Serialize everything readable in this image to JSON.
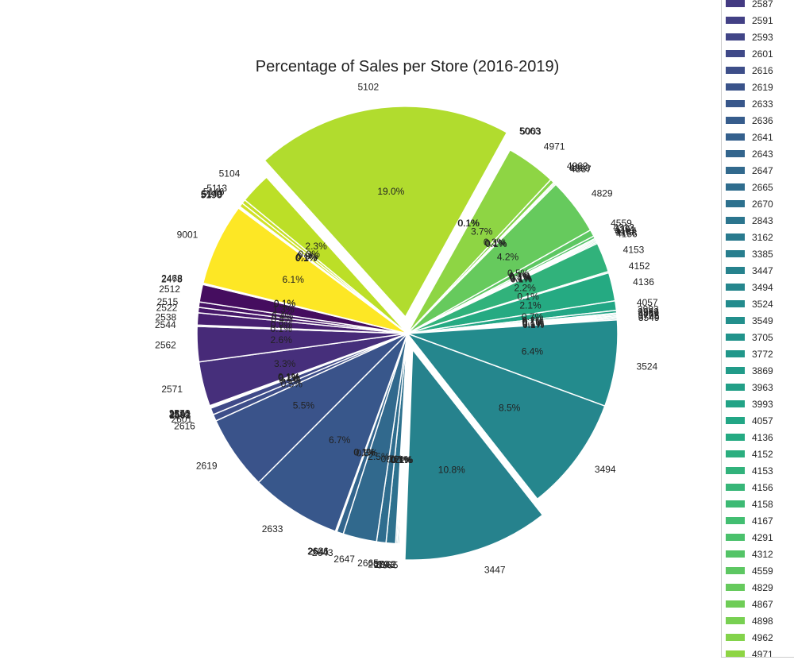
{
  "chart_data": {
    "type": "pie",
    "title": "Percentage of Sales per Store (2016-2019)",
    "startangle": 90,
    "direction": "clockwise",
    "legend": "right",
    "colormap": "viridis",
    "slices": [
      {
        "label": "5102",
        "pct": 19.0,
        "explode": 0.08
      },
      {
        "label": "5063",
        "pct": 0.05
      },
      {
        "label": "5003",
        "pct": 0.05
      },
      {
        "label": "4971",
        "pct": 3.7
      },
      {
        "label": "4962",
        "pct": 0.3
      },
      {
        "label": "4898",
        "pct": 0.1
      },
      {
        "label": "4867",
        "pct": 0.1
      },
      {
        "label": "4829",
        "pct": 4.2
      },
      {
        "label": "4559",
        "pct": 0.5
      },
      {
        "label": "4312",
        "pct": 0.2
      },
      {
        "label": "4291",
        "pct": 0.1
      },
      {
        "label": "4167",
        "pct": 0.1
      },
      {
        "label": "4158",
        "pct": 0.1
      },
      {
        "label": "4156",
        "pct": 0.1
      },
      {
        "label": "4153",
        "pct": 2.2
      },
      {
        "label": "4152",
        "pct": 0.1
      },
      {
        "label": "4136",
        "pct": 2.1
      },
      {
        "label": "4057",
        "pct": 0.7
      },
      {
        "label": "3993",
        "pct": 0.2
      },
      {
        "label": "3963",
        "pct": 0.1
      },
      {
        "label": "3869",
        "pct": 0.1
      },
      {
        "label": "3772",
        "pct": 0.1
      },
      {
        "label": "3705",
        "pct": 0.1
      },
      {
        "label": "3549",
        "pct": 0.1
      },
      {
        "label": "3524",
        "pct": 6.4
      },
      {
        "label": "3494",
        "pct": 8.5
      },
      {
        "label": "3447",
        "pct": 10.8,
        "explode": 0.08
      },
      {
        "label": "3385",
        "pct": 0.1
      },
      {
        "label": "3162",
        "pct": 0.1
      },
      {
        "label": "2843",
        "pct": 0.1
      },
      {
        "label": "2670",
        "pct": 0.7
      },
      {
        "label": "2665",
        "pct": 0.7
      },
      {
        "label": "2647",
        "pct": 2.5
      },
      {
        "label": "2643",
        "pct": 0.5
      },
      {
        "label": "2641",
        "pct": 0.05
      },
      {
        "label": "2636",
        "pct": 0.05
      },
      {
        "label": "2633",
        "pct": 6.7
      },
      {
        "label": "2619",
        "pct": 5.5
      },
      {
        "label": "2616",
        "pct": 0.5
      },
      {
        "label": "2601",
        "pct": 0.5
      },
      {
        "label": "2593",
        "pct": 0.05
      },
      {
        "label": "2591",
        "pct": 0.05
      },
      {
        "label": "2587",
        "pct": 0.05
      },
      {
        "label": "2576",
        "pct": 0.05
      },
      {
        "label": "2571",
        "pct": 3.3
      },
      {
        "label": "2562",
        "pct": 2.6
      },
      {
        "label": "2544",
        "pct": 0.1
      },
      {
        "label": "2538",
        "pct": 0.9
      },
      {
        "label": "2522",
        "pct": 0.4
      },
      {
        "label": "2515",
        "pct": 0.4
      },
      {
        "label": "2512",
        "pct": 1.3
      },
      {
        "label": "2478",
        "pct": 0.05
      },
      {
        "label": "2468",
        "pct": 0.05
      },
      {
        "label": "9001",
        "pct": 6.1
      },
      {
        "label": "5196",
        "pct": 0.05
      },
      {
        "label": "5173",
        "pct": 0.05
      },
      {
        "label": "5140",
        "pct": 0.05
      },
      {
        "label": "5146",
        "pct": 0.3
      },
      {
        "label": "5113",
        "pct": 0.3
      },
      {
        "label": "5104",
        "pct": 2.3
      }
    ],
    "legend_entries": [
      "2587",
      "2591",
      "2593",
      "2601",
      "2616",
      "2619",
      "2633",
      "2636",
      "2641",
      "2643",
      "2647",
      "2665",
      "2670",
      "2843",
      "3162",
      "3385",
      "3447",
      "3494",
      "3524",
      "3549",
      "3705",
      "3772",
      "3869",
      "3963",
      "3993",
      "4057",
      "4136",
      "4152",
      "4153",
      "4156",
      "4158",
      "4167",
      "4291",
      "4312",
      "4559",
      "4829",
      "4867",
      "4898",
      "4962",
      "4971"
    ]
  }
}
